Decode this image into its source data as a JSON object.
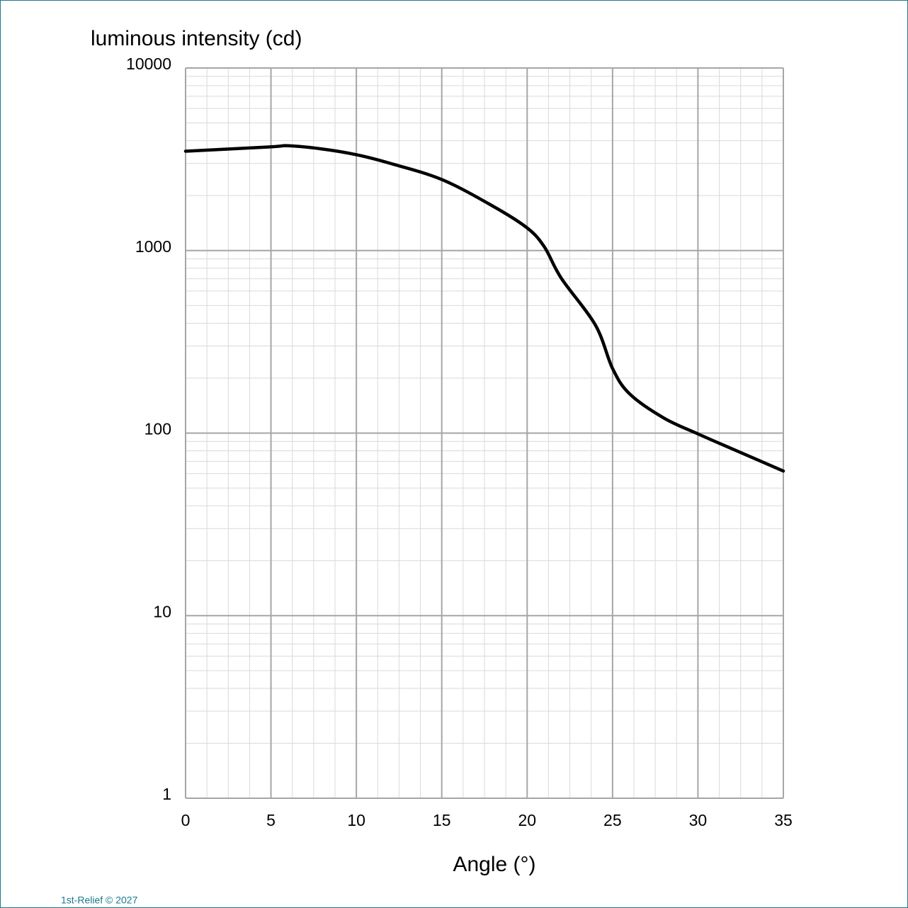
{
  "chart_data": {
    "type": "line",
    "y_label": "luminous intensity (cd)",
    "x_label": "Angle (°)",
    "footer": "1st-Relief © 2027",
    "x": [
      0,
      5,
      6,
      8,
      10,
      12,
      15,
      18,
      20,
      21,
      22,
      24,
      25,
      26,
      28,
      30,
      32,
      35
    ],
    "series": [
      {
        "name": "luminous intensity",
        "color": "#000000",
        "values": [
          3500,
          3700,
          3750,
          3600,
          3350,
          3000,
          2450,
          1750,
          1330,
          1050,
          705,
          390,
          226,
          164,
          121,
          99,
          82,
          62
        ]
      }
    ],
    "xlim": [
      0,
      35
    ],
    "xticks": [
      0,
      5,
      10,
      15,
      20,
      25,
      30,
      35
    ],
    "ylim": [
      1,
      10000
    ],
    "yticks": [
      1,
      10,
      100,
      1000,
      10000
    ],
    "y_scale": "log",
    "grid": true,
    "minor_grid": true
  }
}
